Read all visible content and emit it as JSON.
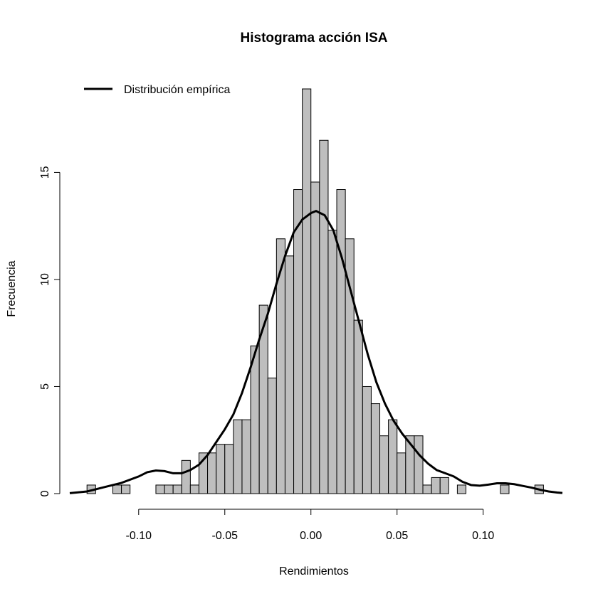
{
  "chart_data": {
    "type": "bar",
    "subtype": "histogram",
    "title": "Histograma acción ISA",
    "xlabel": "Rendimientos",
    "ylabel": "Frecuencia",
    "xlim": [
      -0.14,
      0.146
    ],
    "ylim": [
      0,
      19
    ],
    "x_ticks": [
      -0.1,
      -0.05,
      0.0,
      0.05,
      0.1
    ],
    "x_tick_labels": [
      "-0.10",
      "-0.05",
      "0.00",
      "0.05",
      "0.10"
    ],
    "y_ticks": [
      0,
      5,
      10,
      15
    ],
    "y_tick_labels": [
      "0",
      "5",
      "10",
      "15"
    ],
    "bin_width": 0.005,
    "bins": [
      {
        "x0": -0.13,
        "x1": -0.125,
        "value": 0.4
      },
      {
        "x0": -0.115,
        "x1": -0.11,
        "value": 0.4
      },
      {
        "x0": -0.11,
        "x1": -0.105,
        "value": 0.4
      },
      {
        "x0": -0.09,
        "x1": -0.085,
        "value": 0.4
      },
      {
        "x0": -0.085,
        "x1": -0.08,
        "value": 0.4
      },
      {
        "x0": -0.08,
        "x1": -0.075,
        "value": 0.4
      },
      {
        "x0": -0.075,
        "x1": -0.07,
        "value": 1.55
      },
      {
        "x0": -0.07,
        "x1": -0.065,
        "value": 0.4
      },
      {
        "x0": -0.065,
        "x1": -0.06,
        "value": 1.9
      },
      {
        "x0": -0.06,
        "x1": -0.055,
        "value": 1.9
      },
      {
        "x0": -0.055,
        "x1": -0.05,
        "value": 2.3
      },
      {
        "x0": -0.05,
        "x1": -0.045,
        "value": 2.3
      },
      {
        "x0": -0.045,
        "x1": -0.04,
        "value": 3.45
      },
      {
        "x0": -0.04,
        "x1": -0.035,
        "value": 3.45
      },
      {
        "x0": -0.035,
        "x1": -0.03,
        "value": 6.9
      },
      {
        "x0": -0.03,
        "x1": -0.025,
        "value": 8.8
      },
      {
        "x0": -0.025,
        "x1": -0.02,
        "value": 5.4
      },
      {
        "x0": -0.02,
        "x1": -0.015,
        "value": 11.9
      },
      {
        "x0": -0.015,
        "x1": -0.01,
        "value": 11.1
      },
      {
        "x0": -0.01,
        "x1": -0.005,
        "value": 14.2
      },
      {
        "x0": -0.005,
        "x1": 0.0,
        "value": 18.9
      },
      {
        "x0": 0.0,
        "x1": 0.005,
        "value": 14.55
      },
      {
        "x0": 0.005,
        "x1": 0.01,
        "value": 16.5
      },
      {
        "x0": 0.01,
        "x1": 0.015,
        "value": 12.3
      },
      {
        "x0": 0.015,
        "x1": 0.02,
        "value": 14.2
      },
      {
        "x0": 0.02,
        "x1": 0.025,
        "value": 11.9
      },
      {
        "x0": 0.025,
        "x1": 0.03,
        "value": 8.1
      },
      {
        "x0": 0.03,
        "x1": 0.035,
        "value": 5.0
      },
      {
        "x0": 0.035,
        "x1": 0.04,
        "value": 4.2
      },
      {
        "x0": 0.04,
        "x1": 0.045,
        "value": 2.7
      },
      {
        "x0": 0.045,
        "x1": 0.05,
        "value": 3.45
      },
      {
        "x0": 0.05,
        "x1": 0.055,
        "value": 1.9
      },
      {
        "x0": 0.055,
        "x1": 0.06,
        "value": 2.7
      },
      {
        "x0": 0.06,
        "x1": 0.065,
        "value": 2.7
      },
      {
        "x0": 0.065,
        "x1": 0.07,
        "value": 0.4
      },
      {
        "x0": 0.07,
        "x1": 0.075,
        "value": 0.75
      },
      {
        "x0": 0.075,
        "x1": 0.08,
        "value": 0.75
      },
      {
        "x0": 0.085,
        "x1": 0.09,
        "value": 0.4
      },
      {
        "x0": 0.11,
        "x1": 0.115,
        "value": 0.4
      },
      {
        "x0": 0.13,
        "x1": 0.135,
        "value": 0.4
      }
    ],
    "bar_color": "#bebebe",
    "bar_border_color": "#000000",
    "series": [
      {
        "name": "Distribución empírica",
        "color": "#000000",
        "points": [
          [
            -0.14,
            0.02
          ],
          [
            -0.13,
            0.1
          ],
          [
            -0.12,
            0.3
          ],
          [
            -0.11,
            0.5
          ],
          [
            -0.1,
            0.8
          ],
          [
            -0.095,
            1.0
          ],
          [
            -0.09,
            1.08
          ],
          [
            -0.085,
            1.05
          ],
          [
            -0.08,
            0.95
          ],
          [
            -0.075,
            0.95
          ],
          [
            -0.07,
            1.1
          ],
          [
            -0.065,
            1.35
          ],
          [
            -0.06,
            1.8
          ],
          [
            -0.055,
            2.4
          ],
          [
            -0.05,
            3.0
          ],
          [
            -0.045,
            3.7
          ],
          [
            -0.04,
            4.7
          ],
          [
            -0.035,
            5.9
          ],
          [
            -0.03,
            7.2
          ],
          [
            -0.025,
            8.4
          ],
          [
            -0.02,
            9.8
          ],
          [
            -0.015,
            11.1
          ],
          [
            -0.01,
            12.2
          ],
          [
            -0.005,
            12.8
          ],
          [
            0.0,
            13.1
          ],
          [
            0.003,
            13.2
          ],
          [
            0.008,
            13.0
          ],
          [
            0.013,
            12.3
          ],
          [
            0.018,
            11.0
          ],
          [
            0.023,
            9.5
          ],
          [
            0.028,
            8.0
          ],
          [
            0.033,
            6.5
          ],
          [
            0.038,
            5.2
          ],
          [
            0.043,
            4.2
          ],
          [
            0.048,
            3.4
          ],
          [
            0.053,
            2.8
          ],
          [
            0.058,
            2.3
          ],
          [
            0.063,
            1.8
          ],
          [
            0.068,
            1.4
          ],
          [
            0.073,
            1.1
          ],
          [
            0.078,
            0.95
          ],
          [
            0.083,
            0.8
          ],
          [
            0.088,
            0.55
          ],
          [
            0.093,
            0.4
          ],
          [
            0.098,
            0.37
          ],
          [
            0.103,
            0.42
          ],
          [
            0.108,
            0.48
          ],
          [
            0.113,
            0.48
          ],
          [
            0.118,
            0.44
          ],
          [
            0.123,
            0.36
          ],
          [
            0.128,
            0.28
          ],
          [
            0.133,
            0.18
          ],
          [
            0.138,
            0.1
          ],
          [
            0.143,
            0.05
          ],
          [
            0.146,
            0.03
          ]
        ]
      }
    ],
    "legend": {
      "position": "top-left",
      "entries": [
        "Distribución empírica"
      ]
    },
    "grid": false
  }
}
